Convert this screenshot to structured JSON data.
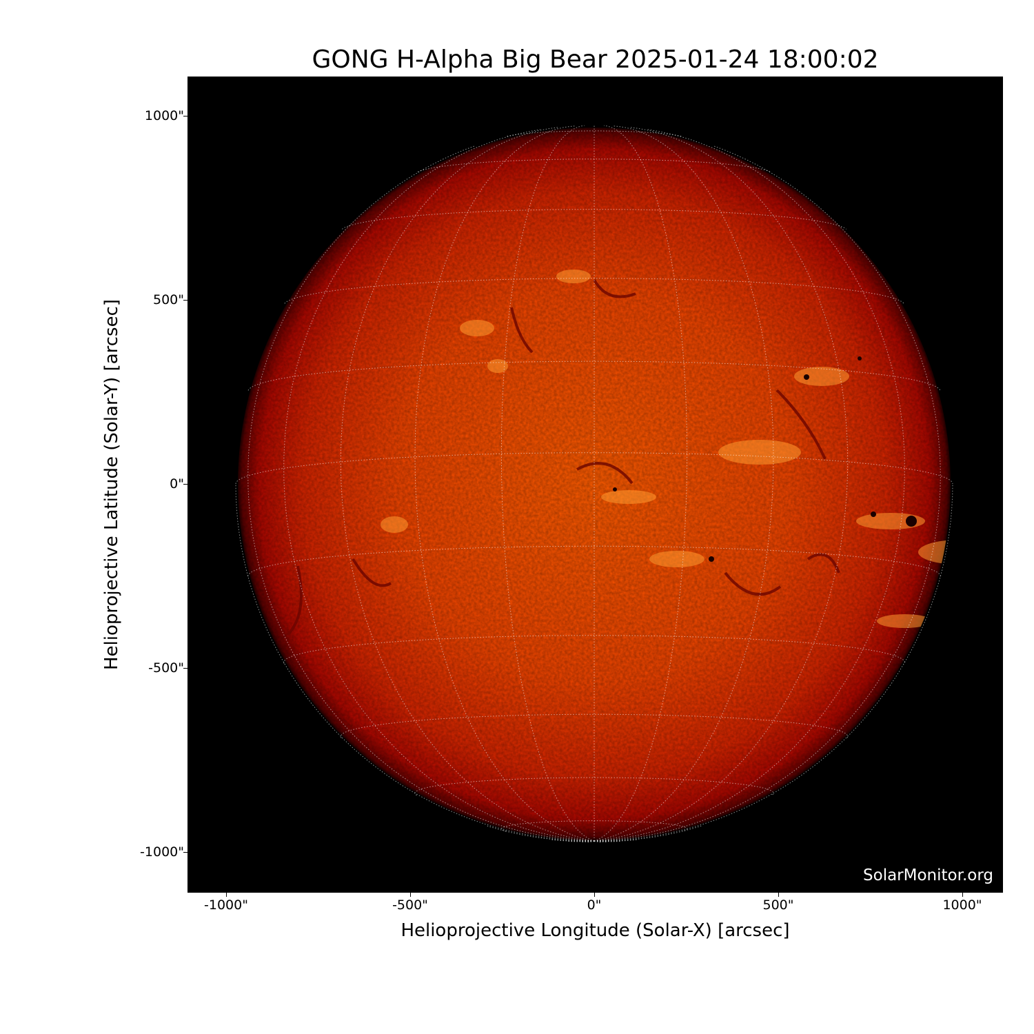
{
  "title": "GONG H-Alpha Big Bear 2025-01-24 18:00:02",
  "xlabel": "Helioprojective Longitude (Solar-X) [arcsec]",
  "ylabel": "Helioprojective Latitude (Solar-Y) [arcsec]",
  "x_ticks": [
    "-1000\"",
    "-500\"",
    "0\"",
    "500\"",
    "1000\""
  ],
  "x_tick_values": [
    -1000,
    -500,
    0,
    500,
    1000
  ],
  "y_ticks": [
    "1000\"",
    "500\"",
    "0\"",
    "-500\"",
    "-1000\""
  ],
  "y_tick_values": [
    1000,
    500,
    0,
    -500,
    -1000
  ],
  "axis_range_arcsec": {
    "x": [
      -1105,
      1110
    ],
    "y": [
      -1110,
      1110
    ]
  },
  "solar_radius_arcsec": 975,
  "grid_spacing_deg": 15,
  "watermark": "SolarMonitor.org",
  "colors": {
    "disk_center": "#ff5a00",
    "disk_mid": "#e02a00",
    "disk_limb": "#8a0000",
    "background": "#000000",
    "grid": "#ffffff"
  }
}
